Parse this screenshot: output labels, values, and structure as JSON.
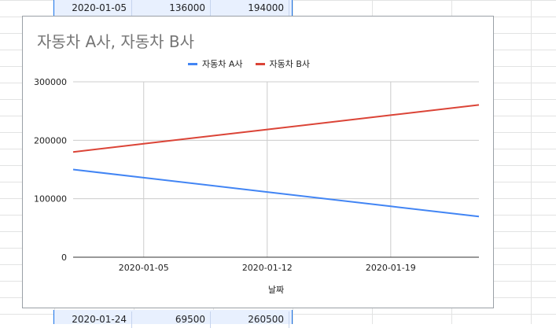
{
  "sheet": {
    "top_row": {
      "date": "2020-01-05",
      "a": "136000",
      "b": "194000"
    },
    "bottom_row": {
      "date": "2020-01-24",
      "a": "69500",
      "b": "260500"
    }
  },
  "chart_data": {
    "type": "line",
    "title": "자동차 A사, 자동차 B사",
    "xlabel": "날짜",
    "ylabel": "",
    "legend_position": "top",
    "x": [
      "2020-01-01",
      "2020-01-05",
      "2020-01-12",
      "2020-01-19",
      "2020-01-24"
    ],
    "x_ticks": [
      "2020-01-05",
      "2020-01-12",
      "2020-01-19"
    ],
    "y_ticks": [
      0,
      100000,
      200000,
      300000
    ],
    "ylim": [
      0,
      300000
    ],
    "series": [
      {
        "name": "자동차 A사",
        "color": "#4285f4",
        "values": [
          150000,
          136000,
          111500,
          87000,
          69500
        ]
      },
      {
        "name": "자동차 B사",
        "color": "#db4437",
        "values": [
          180000,
          194000,
          218500,
          243000,
          260500
        ]
      }
    ]
  }
}
